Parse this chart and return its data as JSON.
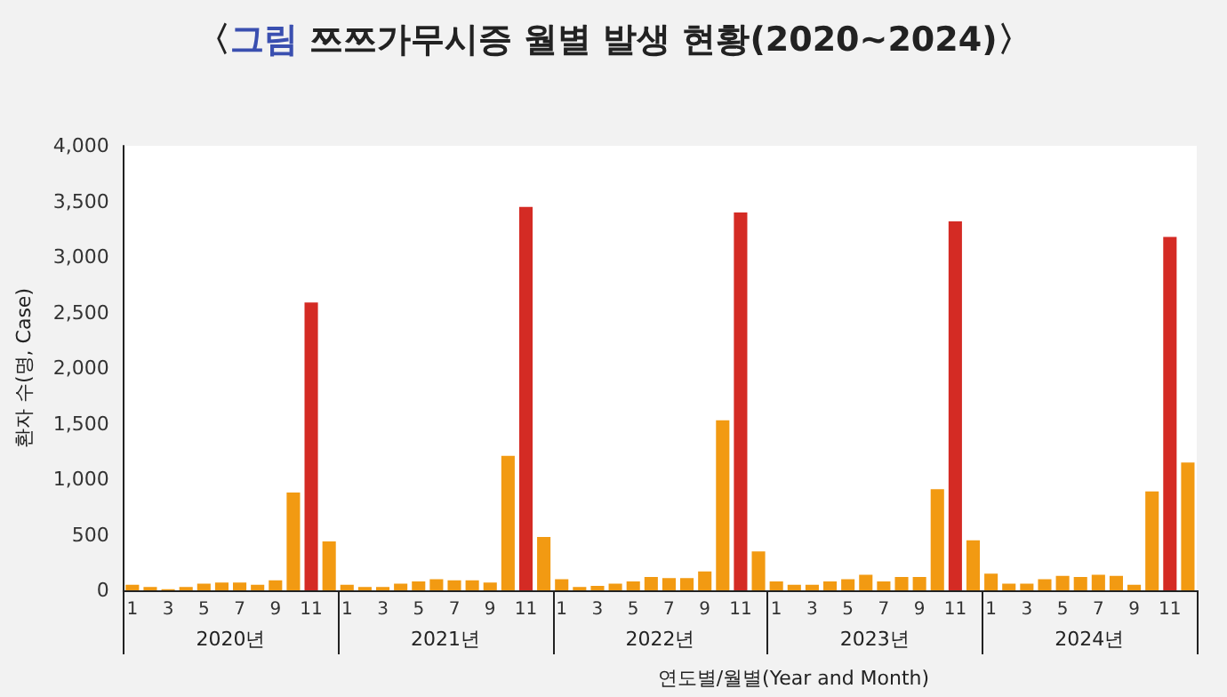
{
  "chart_data": {
    "type": "bar",
    "title": "〈그림 쯔쯔가무시증 월별 발생 현황(2020~2024)〉",
    "xlabel": "연도별/월별(Year and Month)",
    "ylabel": "환자 수(명, Case)",
    "categories": [
      "1",
      null,
      "3",
      null,
      "5",
      null,
      "7",
      null,
      "9",
      null,
      "11",
      null,
      "1",
      null,
      "3",
      null,
      "5",
      null,
      "7",
      null,
      "9",
      null,
      "11",
      null,
      "1",
      null,
      "3",
      null,
      "5",
      null,
      "7",
      null,
      "9",
      null,
      "11",
      null,
      "1",
      null,
      "3",
      null,
      "5",
      null,
      "7",
      null,
      "9",
      null,
      "11",
      null,
      "1",
      null,
      "3",
      null,
      "5",
      null,
      "7",
      null,
      "9",
      null,
      "11",
      null
    ],
    "values": [
      50,
      30,
      10,
      30,
      60,
      70,
      70,
      50,
      90,
      880,
      2590,
      440,
      50,
      30,
      30,
      60,
      80,
      100,
      90,
      90,
      70,
      1210,
      3450,
      480,
      100,
      30,
      40,
      60,
      80,
      120,
      110,
      110,
      170,
      1530,
      3400,
      350,
      80,
      50,
      50,
      80,
      100,
      140,
      80,
      120,
      120,
      910,
      3320,
      450,
      150,
      60,
      60,
      100,
      130,
      120,
      140,
      130,
      50,
      890,
      3180,
      1150
    ],
    "colors": [
      "#f29a12",
      "#f29a12",
      "#f29a12",
      "#f29a12",
      "#f29a12",
      "#f29a12",
      "#f29a12",
      "#f29a12",
      "#f29a12",
      "#f29a12",
      "#d42b24",
      "#f29a12",
      "#f29a12",
      "#f29a12",
      "#f29a12",
      "#f29a12",
      "#f29a12",
      "#f29a12",
      "#f29a12",
      "#f29a12",
      "#f29a12",
      "#f29a12",
      "#d42b24",
      "#f29a12",
      "#f29a12",
      "#f29a12",
      "#f29a12",
      "#f29a12",
      "#f29a12",
      "#f29a12",
      "#f29a12",
      "#f29a12",
      "#f29a12",
      "#f29a12",
      "#d42b24",
      "#f29a12",
      "#f29a12",
      "#f29a12",
      "#f29a12",
      "#f29a12",
      "#f29a12",
      "#f29a12",
      "#f29a12",
      "#f29a12",
      "#f29a12",
      "#f29a12",
      "#d42b24",
      "#f29a12",
      "#f29a12",
      "#f29a12",
      "#f29a12",
      "#f29a12",
      "#f29a12",
      "#f29a12",
      "#f29a12",
      "#f29a12",
      "#f29a12",
      "#f29a12",
      "#d42b24",
      "#f29a12"
    ],
    "ylim": [
      0,
      4000
    ],
    "yticks": [
      0,
      500,
      {
        "value": 1000,
        "label": "1,000"
      },
      {
        "value": 1500,
        "label": "1,500"
      },
      {
        "value": 2000,
        "label": "2,000"
      },
      {
        "value": 2500,
        "label": "2,500"
      },
      {
        "value": 3000,
        "label": "3,000"
      },
      {
        "value": 3500,
        "label": "3,500"
      },
      {
        "value": 4000,
        "label": "4,000"
      }
    ],
    "annotations": [
      "2020년",
      "2021년",
      "2022년",
      "2023년",
      "2024년"
    ],
    "grid": false
  }
}
